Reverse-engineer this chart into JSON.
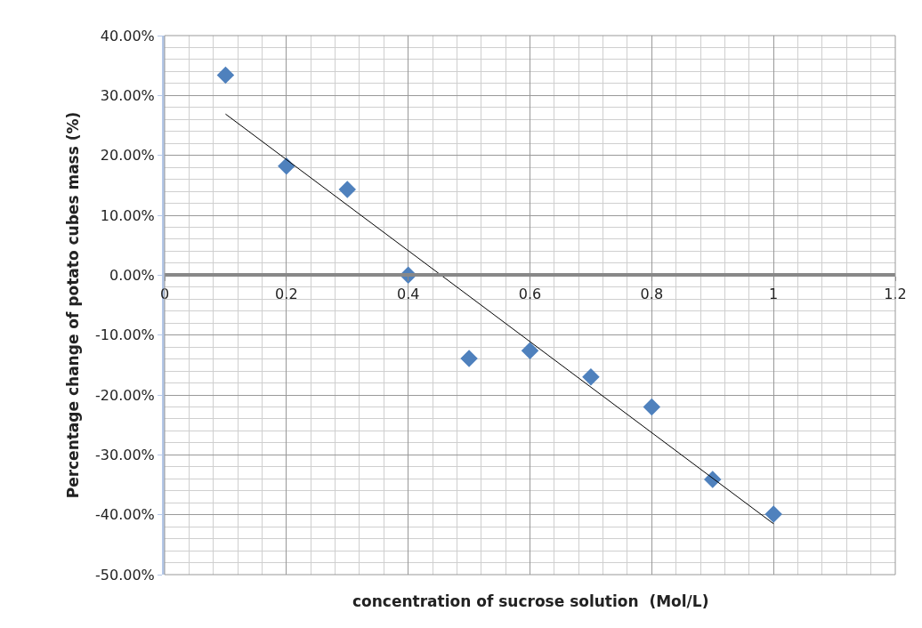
{
  "chart_data": {
    "type": "scatter",
    "xlabel": "concentration of sucrose solution  (Mol/L)",
    "ylabel": "Percentage change of potato cubes mass (%)",
    "x": [
      0.1,
      0.2,
      0.3,
      0.4,
      0.5,
      0.6,
      0.7,
      0.8,
      0.9,
      1.0
    ],
    "series": [
      {
        "color": "#4f81bd",
        "values": [
          33.4,
          18.2,
          14.3,
          0.0,
          -13.9,
          -12.6,
          -17.0,
          -22.0,
          -34.1,
          -39.9
        ],
        "marker": "diamond"
      },
      {
        "type": "line",
        "color": "#000000",
        "x": [
          0.1,
          1.0
        ],
        "values": [
          26.9,
          -41.5
        ],
        "marker": "none"
      }
    ],
    "xlim": [
      0,
      1.2
    ],
    "xticks": [
      0,
      0.2,
      0.4,
      0.6,
      0.8,
      1,
      1.2
    ],
    "ylim": [
      -50,
      40
    ],
    "yticks": [
      {
        "value": -50,
        "label": "-50.00%"
      },
      {
        "value": -40,
        "label": "-40.00%"
      },
      {
        "value": -30,
        "label": "-30.00%"
      },
      {
        "value": -20,
        "label": "-20.00%"
      },
      {
        "value": -10,
        "label": "-10.00%"
      },
      {
        "value": 0,
        "label": "0.00%"
      },
      {
        "value": 10,
        "label": "10.00%"
      },
      {
        "value": 20,
        "label": "20.00%"
      },
      {
        "value": 30,
        "label": "30.00%"
      },
      {
        "value": 40,
        "label": "40.00%"
      }
    ],
    "grid": true
  }
}
